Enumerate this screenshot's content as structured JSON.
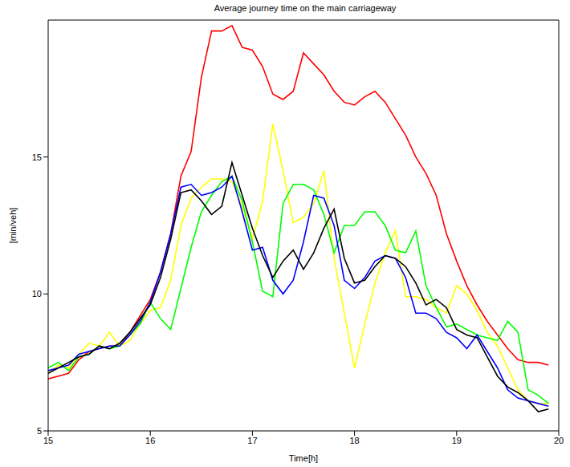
{
  "chart_data": {
    "type": "line",
    "title": "Average journey time on the main carriageway",
    "x_label": "Time[h]",
    "y_label": "[min/veh]",
    "x": [
      15.0,
      15.1,
      15.2,
      15.3,
      15.4,
      15.5,
      15.6,
      15.7,
      15.8,
      15.9,
      16.0,
      16.1,
      16.2,
      16.3,
      16.4,
      16.5,
      16.6,
      16.7,
      16.8,
      16.9,
      17.0,
      17.1,
      17.2,
      17.3,
      17.4,
      17.5,
      17.6,
      17.7,
      17.8,
      17.9,
      18.0,
      18.1,
      18.2,
      18.3,
      18.4,
      18.5,
      18.6,
      18.7,
      18.8,
      18.9,
      19.0,
      19.1,
      19.2,
      19.3,
      19.4,
      19.5,
      19.6,
      19.7,
      19.8,
      19.9
    ],
    "series": [
      {
        "color": "#ff0000",
        "values": [
          6.9,
          7.0,
          7.1,
          7.6,
          7.9,
          8.0,
          8.1,
          8.1,
          8.6,
          9.2,
          9.8,
          10.8,
          12.2,
          14.3,
          15.2,
          17.9,
          19.6,
          19.6,
          19.8,
          19.0,
          18.9,
          18.3,
          17.3,
          17.1,
          17.4,
          18.8,
          18.4,
          18.0,
          17.4,
          17.0,
          16.9,
          17.2,
          17.4,
          17.0,
          16.4,
          15.8,
          15.0,
          14.4,
          13.6,
          12.2,
          11.2,
          10.3,
          9.6,
          9.0,
          8.5,
          8.0,
          7.6,
          7.5,
          7.5,
          7.4
        ]
      },
      {
        "color": "#ffff00",
        "values": [
          7.1,
          7.4,
          7.3,
          7.8,
          8.2,
          8.1,
          8.6,
          8.1,
          8.3,
          8.9,
          9.4,
          9.5,
          10.5,
          12.5,
          13.5,
          13.9,
          14.2,
          14.2,
          14.1,
          13.2,
          12.0,
          13.4,
          16.2,
          14.5,
          12.6,
          12.8,
          13.3,
          14.5,
          11.3,
          9.3,
          7.3,
          8.9,
          10.4,
          11.5,
          12.3,
          9.9,
          9.9,
          9.8,
          9.5,
          9.3,
          10.3,
          10.0,
          9.4,
          8.6,
          8.1,
          7.3,
          6.5,
          6.1,
          6.0,
          6.0
        ]
      },
      {
        "color": "#00ff00",
        "values": [
          7.3,
          7.5,
          7.2,
          7.7,
          7.8,
          8.1,
          8.0,
          8.1,
          8.5,
          8.9,
          9.7,
          9.1,
          8.7,
          10.2,
          11.7,
          13.0,
          13.6,
          14.1,
          14.3,
          13.4,
          11.9,
          10.1,
          9.9,
          13.3,
          14.0,
          14.0,
          13.8,
          12.9,
          11.5,
          12.5,
          12.5,
          13.0,
          13.0,
          12.5,
          11.6,
          11.5,
          12.3,
          10.3,
          9.5,
          8.8,
          8.9,
          8.7,
          8.5,
          8.4,
          8.3,
          9.0,
          8.6,
          6.5,
          6.3,
          6.0
        ]
      },
      {
        "color": "#0000ff",
        "values": [
          7.2,
          7.3,
          7.4,
          7.8,
          7.9,
          8.0,
          8.1,
          8.1,
          8.5,
          9.0,
          9.7,
          10.8,
          12.2,
          13.9,
          14.0,
          13.6,
          13.7,
          13.9,
          14.3,
          13.0,
          11.6,
          11.7,
          10.5,
          10.0,
          10.5,
          11.9,
          13.6,
          13.5,
          12.5,
          10.5,
          10.2,
          10.6,
          11.2,
          11.4,
          11.3,
          10.6,
          9.3,
          9.3,
          9.1,
          8.6,
          8.4,
          8.0,
          8.5,
          7.9,
          7.3,
          6.5,
          6.2,
          6.1,
          6.0,
          5.9
        ]
      },
      {
        "color": "#000000",
        "values": [
          7.1,
          7.3,
          7.5,
          7.7,
          7.8,
          8.1,
          8.0,
          8.2,
          8.6,
          9.1,
          9.6,
          10.6,
          12.0,
          13.7,
          13.8,
          13.4,
          12.9,
          13.2,
          14.8,
          13.6,
          12.4,
          11.4,
          10.6,
          11.2,
          11.6,
          10.9,
          11.5,
          12.4,
          13.1,
          11.3,
          10.4,
          10.5,
          11.0,
          11.4,
          11.3,
          11.0,
          10.4,
          9.6,
          9.8,
          9.5,
          8.7,
          8.5,
          8.4,
          7.7,
          7.0,
          6.6,
          6.4,
          6.1,
          5.7,
          5.8
        ]
      }
    ],
    "xlim": [
      15,
      20
    ],
    "xticks": [
      15,
      16,
      17,
      18,
      19,
      20
    ],
    "ylim": [
      5,
      20
    ],
    "yticks": [
      5,
      10,
      15
    ],
    "grid": false
  }
}
